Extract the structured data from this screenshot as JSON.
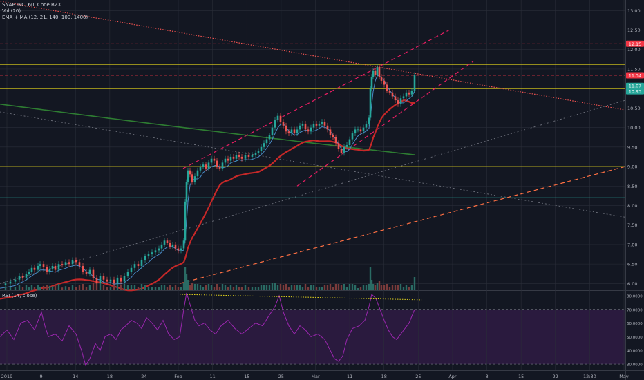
{
  "header": {
    "symbol_line": "SNAP INC, 60, Cboe BZX",
    "vol_line": "Vol (20)",
    "ema_line": "EMA + MA (12, 21, 140, 100, 1400)"
  },
  "rsi_header": {
    "label": "RSI (14, close)"
  },
  "price_tags": [
    {
      "text": "12.15",
      "value": 12.15,
      "color": "#f23645"
    },
    {
      "text": "11.34",
      "value": 11.34,
      "color": "#f23645"
    },
    {
      "text": "11.07",
      "value": 11.07,
      "color": "#26a69a"
    },
    {
      "text": "10.93",
      "value": 10.93,
      "color": "#26a69a"
    }
  ],
  "colors": {
    "background": "#131722",
    "grid": "#2a2e39",
    "up": "#26a69a",
    "down": "#ef5350",
    "ma_red": "#c62828",
    "ma_green": "#2e7d32",
    "ema_blue": "#4a8cc9",
    "channel": "#e91e63",
    "rsi_line": "#9c27b0",
    "rsi_band": "#2a1a3e",
    "trend_orange": "#ff7043",
    "yellow_line": "#e3d41b"
  },
  "chart_data": [
    {
      "type": "line",
      "title": "SNAP INC, 60, Cboe BZX",
      "x_tick_labels": [
        "2019",
        "9",
        "14",
        "18",
        "24",
        "Feb",
        "11",
        "15",
        "25",
        "Mar",
        "11",
        "18",
        "25",
        "Apr",
        "8",
        "15",
        "22",
        "12:30",
        "May"
      ],
      "y_tick_labels": [
        "6.00",
        "6.50",
        "7.00",
        "7.50",
        "8.00",
        "8.50",
        "9.00",
        "9.50",
        "10.00",
        "10.50",
        "11.00",
        "11.50",
        "12.00",
        "12.50",
        "13.00"
      ],
      "ylim": [
        5.9,
        13.2
      ],
      "price_series": [
        [
          0,
          5.96
        ],
        [
          8,
          6.0
        ],
        [
          15,
          6.05
        ],
        [
          22,
          6.1
        ],
        [
          28,
          6.2
        ],
        [
          33,
          6.15
        ],
        [
          38,
          6.25
        ],
        [
          42,
          6.3
        ],
        [
          46,
          6.4
        ],
        [
          50,
          6.35
        ],
        [
          55,
          6.45
        ],
        [
          58,
          6.5
        ],
        [
          63,
          6.42
        ],
        [
          68,
          6.3
        ],
        [
          72,
          6.38
        ],
        [
          76,
          6.45
        ],
        [
          80,
          6.35
        ],
        [
          85,
          6.5
        ],
        [
          90,
          6.48
        ],
        [
          95,
          6.55
        ],
        [
          100,
          6.5
        ],
        [
          105,
          6.6
        ],
        [
          110,
          6.55
        ],
        [
          115,
          6.45
        ],
        [
          120,
          6.3
        ],
        [
          125,
          6.25
        ],
        [
          130,
          6.35
        ],
        [
          135,
          6.15
        ],
        [
          140,
          6.0
        ],
        [
          145,
          6.2
        ],
        [
          150,
          6.1
        ],
        [
          155,
          6.05
        ],
        [
          160,
          6.1
        ],
        [
          165,
          6.0
        ],
        [
          170,
          6.15
        ],
        [
          175,
          6.05
        ],
        [
          180,
          6.2
        ],
        [
          185,
          6.3
        ],
        [
          190,
          6.4
        ],
        [
          195,
          6.5
        ],
        [
          200,
          6.45
        ],
        [
          205,
          6.6
        ],
        [
          210,
          6.7
        ],
        [
          215,
          6.75
        ],
        [
          220,
          6.8
        ],
        [
          225,
          6.85
        ],
        [
          230,
          6.9
        ],
        [
          234,
          7.0
        ],
        [
          238,
          7.1
        ],
        [
          242,
          7.05
        ],
        [
          246,
          6.95
        ],
        [
          250,
          7.0
        ],
        [
          254,
          6.9
        ],
        [
          258,
          6.85
        ],
        [
          262,
          6.9
        ],
        [
          266,
          7.1
        ],
        [
          268,
          8.1
        ],
        [
          270,
          8.6
        ],
        [
          272,
          8.9
        ],
        [
          275,
          8.8
        ],
        [
          278,
          8.6
        ],
        [
          282,
          8.75
        ],
        [
          286,
          8.9
        ],
        [
          290,
          9.0
        ],
        [
          294,
          9.05
        ],
        [
          298,
          8.95
        ],
        [
          302,
          9.1
        ],
        [
          306,
          9.2
        ],
        [
          310,
          9.15
        ],
        [
          314,
          9.0
        ],
        [
          318,
          8.95
        ],
        [
          322,
          9.1
        ],
        [
          326,
          9.2
        ],
        [
          330,
          9.15
        ],
        [
          334,
          9.25
        ],
        [
          338,
          9.2
        ],
        [
          342,
          9.3
        ],
        [
          346,
          9.25
        ],
        [
          350,
          9.2
        ],
        [
          355,
          9.3
        ],
        [
          360,
          9.25
        ],
        [
          365,
          9.3
        ],
        [
          370,
          9.35
        ],
        [
          374,
          9.4
        ],
        [
          378,
          9.5
        ],
        [
          382,
          9.6
        ],
        [
          386,
          9.7
        ],
        [
          390,
          9.8
        ],
        [
          394,
          10.0
        ],
        [
          398,
          10.2
        ],
        [
          402,
          10.3
        ],
        [
          406,
          10.15
        ],
        [
          410,
          10.05
        ],
        [
          414,
          9.9
        ],
        [
          418,
          9.85
        ],
        [
          422,
          9.95
        ],
        [
          426,
          9.85
        ],
        [
          430,
          9.95
        ],
        [
          434,
          10.05
        ],
        [
          438,
          10.1
        ],
        [
          442,
          9.95
        ],
        [
          446,
          9.9
        ],
        [
          450,
          10.0
        ],
        [
          454,
          10.1
        ],
        [
          458,
          10.05
        ],
        [
          462,
          10.1
        ],
        [
          466,
          10.15
        ],
        [
          470,
          10.05
        ],
        [
          474,
          9.95
        ],
        [
          478,
          9.8
        ],
        [
          482,
          9.75
        ],
        [
          486,
          9.6
        ],
        [
          490,
          9.45
        ],
        [
          494,
          9.35
        ],
        [
          498,
          9.5
        ],
        [
          502,
          9.55
        ],
        [
          506,
          9.7
        ],
        [
          510,
          9.85
        ],
        [
          514,
          9.95
        ],
        [
          518,
          9.95
        ],
        [
          522,
          9.9
        ],
        [
          526,
          10.0
        ],
        [
          530,
          10.1
        ],
        [
          534,
          10.25
        ],
        [
          536,
          11.0
        ],
        [
          538,
          11.3
        ],
        [
          540,
          11.45
        ],
        [
          543,
          11.35
        ],
        [
          546,
          11.55
        ],
        [
          549,
          11.3
        ],
        [
          552,
          11.2
        ],
        [
          556,
          11.1
        ],
        [
          560,
          10.95
        ],
        [
          564,
          10.9
        ],
        [
          568,
          10.8
        ],
        [
          572,
          10.7
        ],
        [
          576,
          10.6
        ],
        [
          580,
          10.75
        ],
        [
          584,
          10.8
        ],
        [
          588,
          10.9
        ],
        [
          592,
          10.85
        ],
        [
          596,
          10.95
        ],
        [
          600,
          11.35
        ]
      ]
    },
    {
      "type": "line",
      "title": "RSI (14, close)",
      "y_tick_labels": [
        "30.0000",
        "40.0000",
        "50.0000",
        "60.0000",
        "70.0000",
        "80.0000"
      ],
      "ylim": [
        27,
        82
      ],
      "levels": [
        30,
        70
      ],
      "rsi_series": [
        [
          0,
          50
        ],
        [
          10,
          55
        ],
        [
          20,
          48
        ],
        [
          30,
          60
        ],
        [
          40,
          62
        ],
        [
          50,
          55
        ],
        [
          60,
          68
        ],
        [
          65,
          58
        ],
        [
          70,
          50
        ],
        [
          80,
          52
        ],
        [
          90,
          47
        ],
        [
          100,
          58
        ],
        [
          110,
          52
        ],
        [
          118,
          40
        ],
        [
          124,
          29
        ],
        [
          130,
          34
        ],
        [
          138,
          45
        ],
        [
          145,
          40
        ],
        [
          152,
          50
        ],
        [
          160,
          52
        ],
        [
          168,
          48
        ],
        [
          175,
          55
        ],
        [
          182,
          58
        ],
        [
          190,
          62
        ],
        [
          198,
          60
        ],
        [
          205,
          56
        ],
        [
          212,
          64
        ],
        [
          220,
          60
        ],
        [
          228,
          55
        ],
        [
          236,
          62
        ],
        [
          244,
          52
        ],
        [
          252,
          48
        ],
        [
          260,
          50
        ],
        [
          266,
          70
        ],
        [
          270,
          82
        ],
        [
          276,
          72
        ],
        [
          282,
          62
        ],
        [
          288,
          58
        ],
        [
          296,
          60
        ],
        [
          304,
          55
        ],
        [
          312,
          52
        ],
        [
          320,
          58
        ],
        [
          330,
          62
        ],
        [
          340,
          56
        ],
        [
          350,
          52
        ],
        [
          360,
          56
        ],
        [
          370,
          60
        ],
        [
          380,
          58
        ],
        [
          390,
          66
        ],
        [
          398,
          72
        ],
        [
          404,
          80
        ],
        [
          410,
          68
        ],
        [
          418,
          58
        ],
        [
          426,
          52
        ],
        [
          434,
          58
        ],
        [
          442,
          55
        ],
        [
          450,
          50
        ],
        [
          460,
          52
        ],
        [
          470,
          48
        ],
        [
          478,
          40
        ],
        [
          484,
          34
        ],
        [
          490,
          32
        ],
        [
          496,
          36
        ],
        [
          502,
          48
        ],
        [
          510,
          56
        ],
        [
          520,
          58
        ],
        [
          528,
          62
        ],
        [
          534,
          72
        ],
        [
          538,
          81
        ],
        [
          544,
          78
        ],
        [
          550,
          70
        ],
        [
          556,
          62
        ],
        [
          562,
          55
        ],
        [
          568,
          50
        ],
        [
          574,
          48
        ],
        [
          580,
          52
        ],
        [
          586,
          56
        ],
        [
          592,
          60
        ],
        [
          600,
          70
        ]
      ]
    }
  ]
}
